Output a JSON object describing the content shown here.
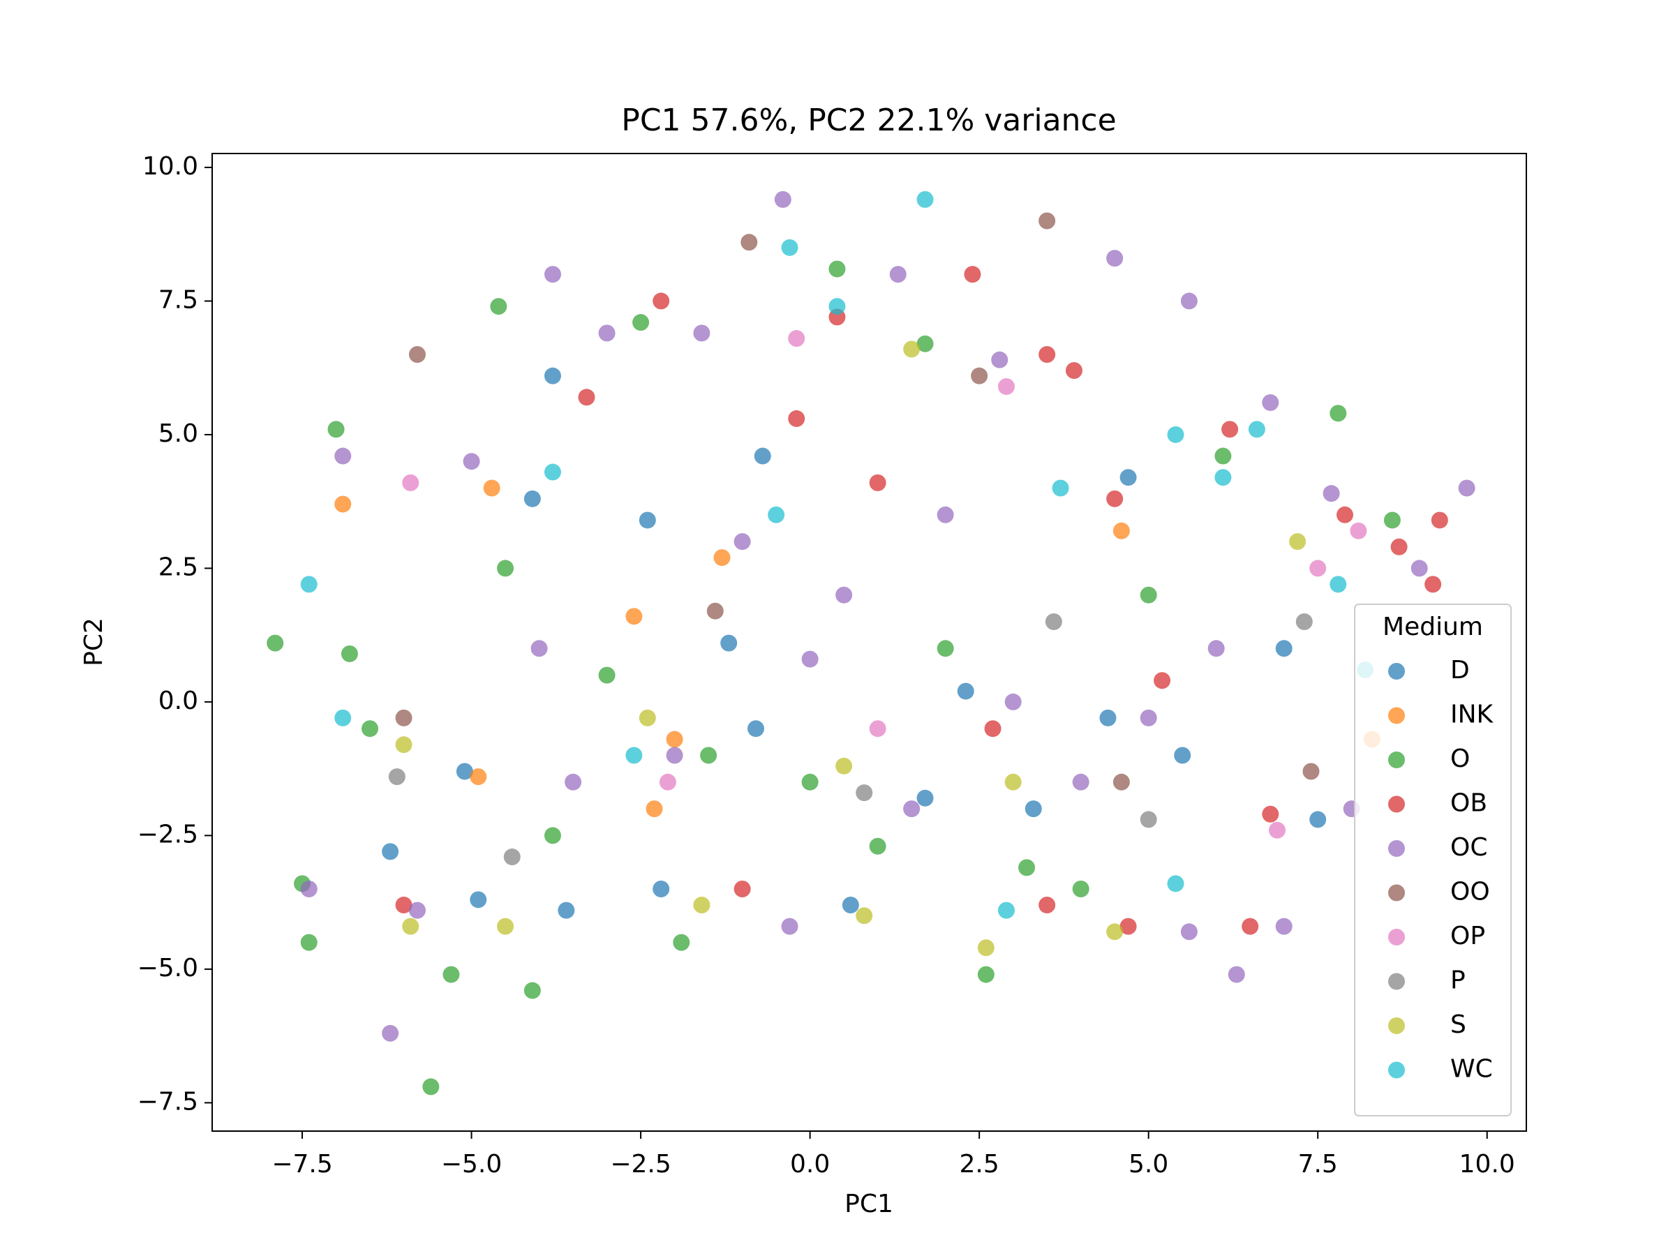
{
  "chart_data": {
    "type": "scatter",
    "title": "PC1 57.6%, PC2 22.1% variance",
    "x_label": "PC1",
    "y_label": "PC2",
    "xlim": [
      -8.83,
      10.58
    ],
    "ylim": [
      -8.03,
      10.26
    ],
    "xticks": [
      {
        "value": -7.5,
        "label": "−7.5"
      },
      {
        "value": -5,
        "label": "−5.0"
      },
      {
        "value": -2.5,
        "label": "−2.5"
      },
      {
        "value": 0,
        "label": "0.0"
      },
      2.5,
      {
        "value": 5,
        "label": "5.0"
      },
      7.5,
      {
        "value": 10,
        "label": "10.0"
      }
    ],
    "yticks": [
      {
        "value": -7.5,
        "label": "−7.5"
      },
      {
        "value": -5,
        "label": "−5.0"
      },
      {
        "value": -2.5,
        "label": "−2.5"
      },
      {
        "value": 0,
        "label": "0.0"
      },
      2.5,
      {
        "value": 5,
        "label": "5.0"
      },
      7.5,
      {
        "value": 10,
        "label": "10.0"
      }
    ],
    "legend_title": "Medium",
    "legend_position": "lower right",
    "grid": false,
    "alpha": 0.7,
    "series": [
      {
        "name": "D",
        "color": "#1f77b4",
        "x": [
          -3.8,
          4.7,
          -0.7,
          -2.4,
          -4.1,
          7.0,
          -6.2,
          -4.9,
          -3.6,
          0.6,
          -2.2,
          4.4,
          1.7,
          -0.8,
          2.3,
          5.5,
          7.5,
          -1.2,
          3.3,
          -5.1
        ],
        "y": [
          6.1,
          4.2,
          4.6,
          3.4,
          3.8,
          1.0,
          -2.8,
          -3.7,
          -3.9,
          -3.8,
          -3.5,
          -0.3,
          -1.8,
          -0.5,
          0.2,
          -1.0,
          -2.2,
          1.1,
          -2.0,
          -1.3
        ]
      },
      {
        "name": "INK",
        "color": "#ff7f0e",
        "x": [
          -6.9,
          -4.7,
          4.6,
          -2.0,
          -2.6,
          -4.9,
          -2.3,
          8.3,
          -1.3
        ],
        "y": [
          3.7,
          4.0,
          3.2,
          -0.7,
          1.6,
          -1.4,
          -2.0,
          -0.7,
          2.7
        ]
      },
      {
        "name": "O",
        "color": "#2ca02c",
        "x": [
          -7.9,
          -7.4,
          -7.5,
          -7.0,
          -5.6,
          -4.1,
          -4.6,
          0.4,
          -2.5,
          1.7,
          7.8,
          -6.5,
          -5.3,
          2.6,
          -1.9,
          3.2,
          -3.0,
          0.0,
          5.0,
          -4.5,
          1.0,
          8.6,
          -6.8,
          4.0,
          6.1,
          -1.5,
          2.0,
          -3.8
        ],
        "y": [
          1.1,
          -4.5,
          -3.4,
          5.1,
          -7.2,
          -5.4,
          7.4,
          8.1,
          7.1,
          6.7,
          5.4,
          -0.5,
          -5.1,
          -5.1,
          -4.5,
          -3.1,
          0.5,
          -1.5,
          2.0,
          2.5,
          -2.7,
          3.4,
          0.9,
          -3.5,
          4.6,
          -1.0,
          1.0,
          -2.5
        ]
      },
      {
        "name": "OB",
        "color": "#d62728",
        "x": [
          2.4,
          0.4,
          -2.2,
          3.5,
          3.9,
          6.2,
          9.3,
          9.2,
          8.7,
          6.5,
          -6.0,
          -1.0,
          3.5,
          4.7,
          1.0,
          -0.2,
          4.5,
          6.8,
          7.9,
          2.7,
          -3.3,
          5.2
        ],
        "y": [
          8.0,
          7.2,
          7.5,
          6.5,
          6.2,
          5.1,
          3.4,
          2.2,
          2.9,
          -4.2,
          -3.8,
          -3.5,
          -3.8,
          -4.2,
          4.1,
          5.3,
          3.8,
          -2.1,
          3.5,
          -0.5,
          5.7,
          0.4
        ]
      },
      {
        "name": "OC",
        "color": "#9467bd",
        "x": [
          -0.4,
          4.5,
          -3.8,
          1.3,
          5.6,
          9.7,
          -6.2,
          6.3,
          -5.8,
          -0.3,
          5.6,
          7.0,
          -7.4,
          -6.9,
          7.7,
          -3.0,
          2.8,
          0.5,
          -2.0,
          3.0,
          6.0,
          -4.0,
          1.5,
          8.0,
          -1.0,
          4.0,
          -5.0,
          6.8,
          -1.6,
          2.0,
          -3.5,
          5.0,
          0.0,
          9.0
        ],
        "y": [
          9.4,
          8.3,
          8.0,
          8.0,
          7.5,
          4.0,
          -6.2,
          -5.1,
          -3.9,
          -4.2,
          -4.3,
          -4.2,
          -3.5,
          4.6,
          3.9,
          6.9,
          6.4,
          2.0,
          -1.0,
          0.0,
          1.0,
          1.0,
          -2.0,
          -2.0,
          3.0,
          -1.5,
          4.5,
          5.6,
          6.9,
          3.5,
          -1.5,
          -0.3,
          0.8,
          2.5
        ]
      },
      {
        "name": "OO",
        "color": "#8c564b",
        "x": [
          -5.8,
          -0.9,
          3.5,
          2.5,
          -6.0,
          4.6,
          7.4,
          -1.4
        ],
        "y": [
          6.5,
          8.6,
          9.0,
          6.1,
          -0.3,
          -1.5,
          -1.3,
          1.7
        ]
      },
      {
        "name": "OP",
        "color": "#e377c2",
        "x": [
          -5.9,
          -0.2,
          2.9,
          8.1,
          7.5,
          6.9,
          1.0,
          -2.1
        ],
        "y": [
          4.1,
          6.8,
          5.9,
          3.2,
          2.5,
          -2.4,
          -0.5,
          -1.5
        ]
      },
      {
        "name": "P",
        "color": "#7f7f7f",
        "x": [
          -6.1,
          3.6,
          7.3,
          -4.4,
          0.8,
          5.0
        ],
        "y": [
          -1.4,
          1.5,
          1.5,
          -2.9,
          -1.7,
          -2.2
        ]
      },
      {
        "name": "S",
        "color": "#bcbd22",
        "x": [
          -5.9,
          1.5,
          -1.6,
          0.8,
          2.6,
          4.5,
          -4.5,
          -6.0,
          3.0,
          0.5,
          7.2,
          -2.4
        ],
        "y": [
          -4.2,
          6.6,
          -3.8,
          -4.0,
          -4.6,
          -4.3,
          -4.2,
          -0.8,
          -1.5,
          -1.2,
          3.0,
          -0.3
        ]
      },
      {
        "name": "WC",
        "color": "#17becf",
        "x": [
          1.7,
          -0.3,
          0.4,
          -7.4,
          -6.9,
          6.6,
          6.1,
          5.4,
          -3.8,
          8.2,
          5.4,
          2.9,
          -0.5,
          3.7,
          -2.6,
          7.8
        ],
        "y": [
          9.4,
          8.5,
          7.4,
          2.2,
          -0.3,
          5.1,
          4.2,
          5.0,
          4.3,
          0.6,
          -3.4,
          -3.9,
          3.5,
          4.0,
          -1.0,
          2.2
        ]
      }
    ]
  }
}
